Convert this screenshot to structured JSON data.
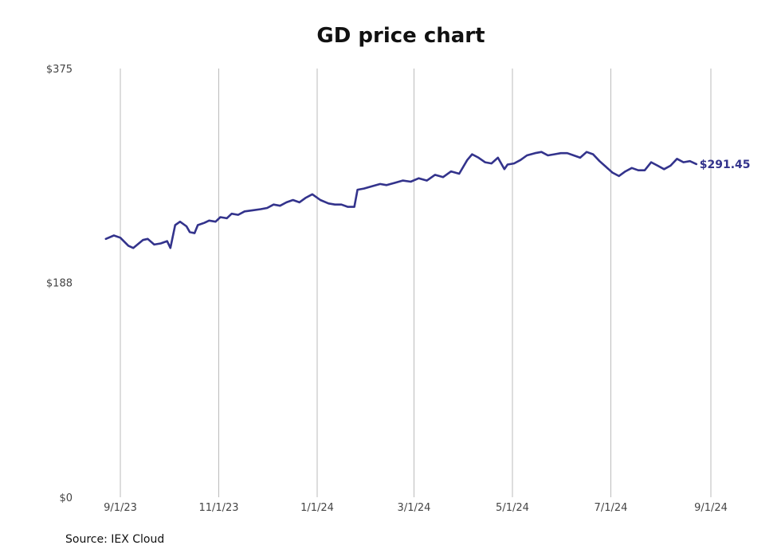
{
  "source_label": "Source: IEX Cloud",
  "colors": {
    "line": "#33338c",
    "grid": "#bbbbbb",
    "text": "#444444"
  },
  "chart_data": {
    "type": "line",
    "title": "GD price chart",
    "xlabel": "",
    "ylabel": "",
    "ylim": [
      0,
      375
    ],
    "y_ticks": [
      0,
      188,
      375
    ],
    "y_tick_labels": [
      "$0",
      "$188",
      "$375"
    ],
    "x_ticks": [
      "2023-09-01",
      "2023-11-01",
      "2024-01-01",
      "2024-03-01",
      "2024-05-01",
      "2024-07-01",
      "2024-09-01"
    ],
    "x_tick_labels": [
      "9/1/23",
      "11/1/23",
      "1/1/24",
      "3/1/24",
      "5/1/24",
      "7/1/24",
      "9/1/24"
    ],
    "grid": "vertical",
    "last_value_label": "$291.45",
    "series": [
      {
        "name": "",
        "x": [
          "2023-08-23",
          "2023-08-28",
          "2023-09-01",
          "2023-09-06",
          "2023-09-09",
          "2023-09-15",
          "2023-09-18",
          "2023-09-22",
          "2023-09-26",
          "2023-09-30",
          "2023-10-02",
          "2023-10-05",
          "2023-10-08",
          "2023-10-12",
          "2023-10-14",
          "2023-10-17",
          "2023-10-19",
          "2023-10-23",
          "2023-10-26",
          "2023-10-30",
          "2023-11-02",
          "2023-11-06",
          "2023-11-09",
          "2023-11-13",
          "2023-11-17",
          "2023-11-22",
          "2023-11-27",
          "2023-12-01",
          "2023-12-05",
          "2023-12-09",
          "2023-12-13",
          "2023-12-17",
          "2023-12-21",
          "2023-12-25",
          "2023-12-29",
          "2024-01-03",
          "2024-01-08",
          "2024-01-12",
          "2024-01-16",
          "2024-01-20",
          "2024-01-24",
          "2024-01-26",
          "2024-01-30",
          "2024-02-04",
          "2024-02-09",
          "2024-02-13",
          "2024-02-18",
          "2024-02-23",
          "2024-02-28",
          "2024-03-04",
          "2024-03-09",
          "2024-03-14",
          "2024-03-19",
          "2024-03-24",
          "2024-03-29",
          "2024-04-03",
          "2024-04-06",
          "2024-04-10",
          "2024-04-14",
          "2024-04-18",
          "2024-04-22",
          "2024-04-26",
          "2024-04-28",
          "2024-05-02",
          "2024-05-06",
          "2024-05-10",
          "2024-05-15",
          "2024-05-19",
          "2024-05-23",
          "2024-05-27",
          "2024-05-31",
          "2024-06-04",
          "2024-06-08",
          "2024-06-12",
          "2024-06-16",
          "2024-06-20",
          "2024-06-24",
          "2024-06-28",
          "2024-07-02",
          "2024-07-06",
          "2024-07-10",
          "2024-07-14",
          "2024-07-18",
          "2024-07-22",
          "2024-07-26",
          "2024-07-30",
          "2024-08-03",
          "2024-08-07",
          "2024-08-11",
          "2024-08-15",
          "2024-08-19",
          "2024-08-23"
        ],
        "values": [
          226,
          229,
          227,
          220,
          218,
          225,
          226,
          221,
          222,
          224,
          218,
          238,
          241,
          237,
          232,
          231,
          238,
          240,
          242,
          241,
          245,
          244,
          248,
          247,
          250,
          251,
          252,
          253,
          256,
          255,
          258,
          260,
          258,
          262,
          265,
          260,
          257,
          256,
          256,
          254,
          254,
          269,
          270,
          272,
          274,
          273,
          275,
          277,
          276,
          279,
          277,
          282,
          280,
          285,
          283,
          295,
          300,
          297,
          293,
          292,
          297,
          287,
          291,
          292,
          295,
          299,
          301,
          302,
          299,
          300,
          301,
          301,
          299,
          297,
          302,
          300,
          294,
          289,
          284,
          281,
          285,
          288,
          286,
          286,
          293,
          290,
          287,
          290,
          296,
          293,
          294,
          291.45
        ]
      }
    ]
  }
}
